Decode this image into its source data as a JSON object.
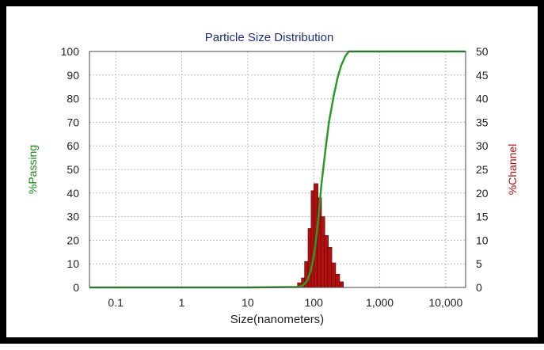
{
  "chart_data": {
    "type": "bar",
    "title": "Particle Size Distribution",
    "xlabel": "Size(nanometers)",
    "ylabel_left": "%Passing",
    "ylabel_right": "%Channel",
    "x_scale": "log",
    "xlim": [
      0.04,
      20000
    ],
    "ylim_left": [
      0,
      100
    ],
    "ylim_right": [
      0,
      50
    ],
    "x_ticks": [
      {
        "value": 0.1,
        "label": "0.1"
      },
      {
        "value": 1,
        "label": "1"
      },
      {
        "value": 10,
        "label": "10"
      },
      {
        "value": 100,
        "label": "100"
      },
      {
        "value": 1000,
        "label": "1,000"
      },
      {
        "value": 10000,
        "label": "10,000"
      }
    ],
    "y_left_ticks": [
      "0",
      "10",
      "20",
      "30",
      "40",
      "50",
      "60",
      "70",
      "80",
      "90",
      "100"
    ],
    "y_right_ticks": [
      "0",
      "5",
      "10",
      "15",
      "20",
      "25",
      "30",
      "35",
      "40",
      "45",
      "50"
    ],
    "grid": true,
    "series": [
      {
        "name": "%Passing",
        "type": "line",
        "axis": "left",
        "color": "#2a9a2a",
        "points": [
          [
            0.04,
            0
          ],
          [
            1,
            0
          ],
          [
            10,
            0
          ],
          [
            60,
            0.2
          ],
          [
            70,
            1
          ],
          [
            80,
            3
          ],
          [
            90,
            7
          ],
          [
            100,
            13
          ],
          [
            110,
            22
          ],
          [
            120,
            32
          ],
          [
            130,
            43
          ],
          [
            150,
            58
          ],
          [
            170,
            70
          ],
          [
            200,
            81
          ],
          [
            230,
            89
          ],
          [
            260,
            94
          ],
          [
            300,
            98
          ],
          [
            340,
            100
          ],
          [
            20000,
            100
          ]
        ]
      },
      {
        "name": "%Channel",
        "type": "bar",
        "axis": "right",
        "color": "#b01010",
        "points": [
          [
            61,
            1
          ],
          [
            70,
            2
          ],
          [
            78,
            5.5
          ],
          [
            88,
            12.5
          ],
          [
            98,
            20.5
          ],
          [
            108,
            22
          ],
          [
            122,
            19
          ],
          [
            137,
            15
          ],
          [
            155,
            11
          ],
          [
            175,
            8.5
          ],
          [
            200,
            5.2
          ],
          [
            230,
            2.8
          ],
          [
            262,
            1.2
          ]
        ]
      }
    ]
  }
}
